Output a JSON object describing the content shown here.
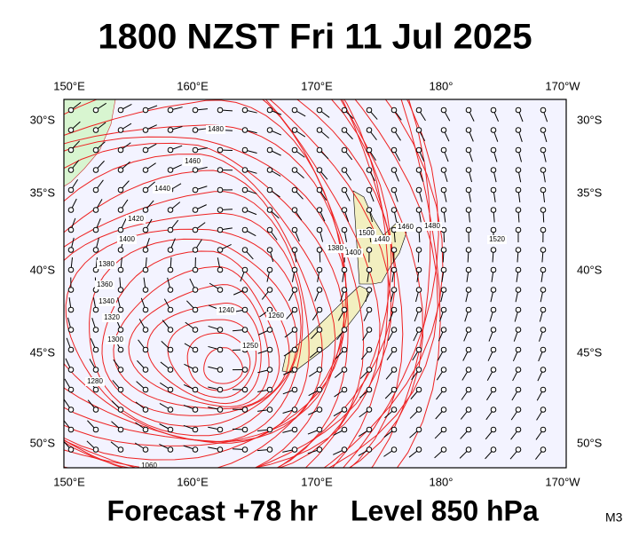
{
  "title": "1800 NZST Fri 11 Jul 2025",
  "footer": {
    "forecast": "Forecast +78 hr",
    "level": "Level 850 hPa",
    "model": "M3"
  },
  "axes": {
    "longitudes": [
      "150°E",
      "160°E",
      "170°E",
      "180°",
      "170°W"
    ],
    "latitudes": [
      "30°S",
      "35°S",
      "40°S",
      "45°S",
      "50°S"
    ]
  },
  "contour_labels": [
    "1480",
    "1460",
    "1440",
    "1420",
    "1400",
    "1380",
    "1360",
    "1340",
    "1320",
    "1300",
    "1280",
    "1240",
    "1250",
    "1260",
    "1380",
    "1400",
    "1440",
    "1460",
    "1480",
    "1500",
    "1520",
    "1060"
  ]
}
